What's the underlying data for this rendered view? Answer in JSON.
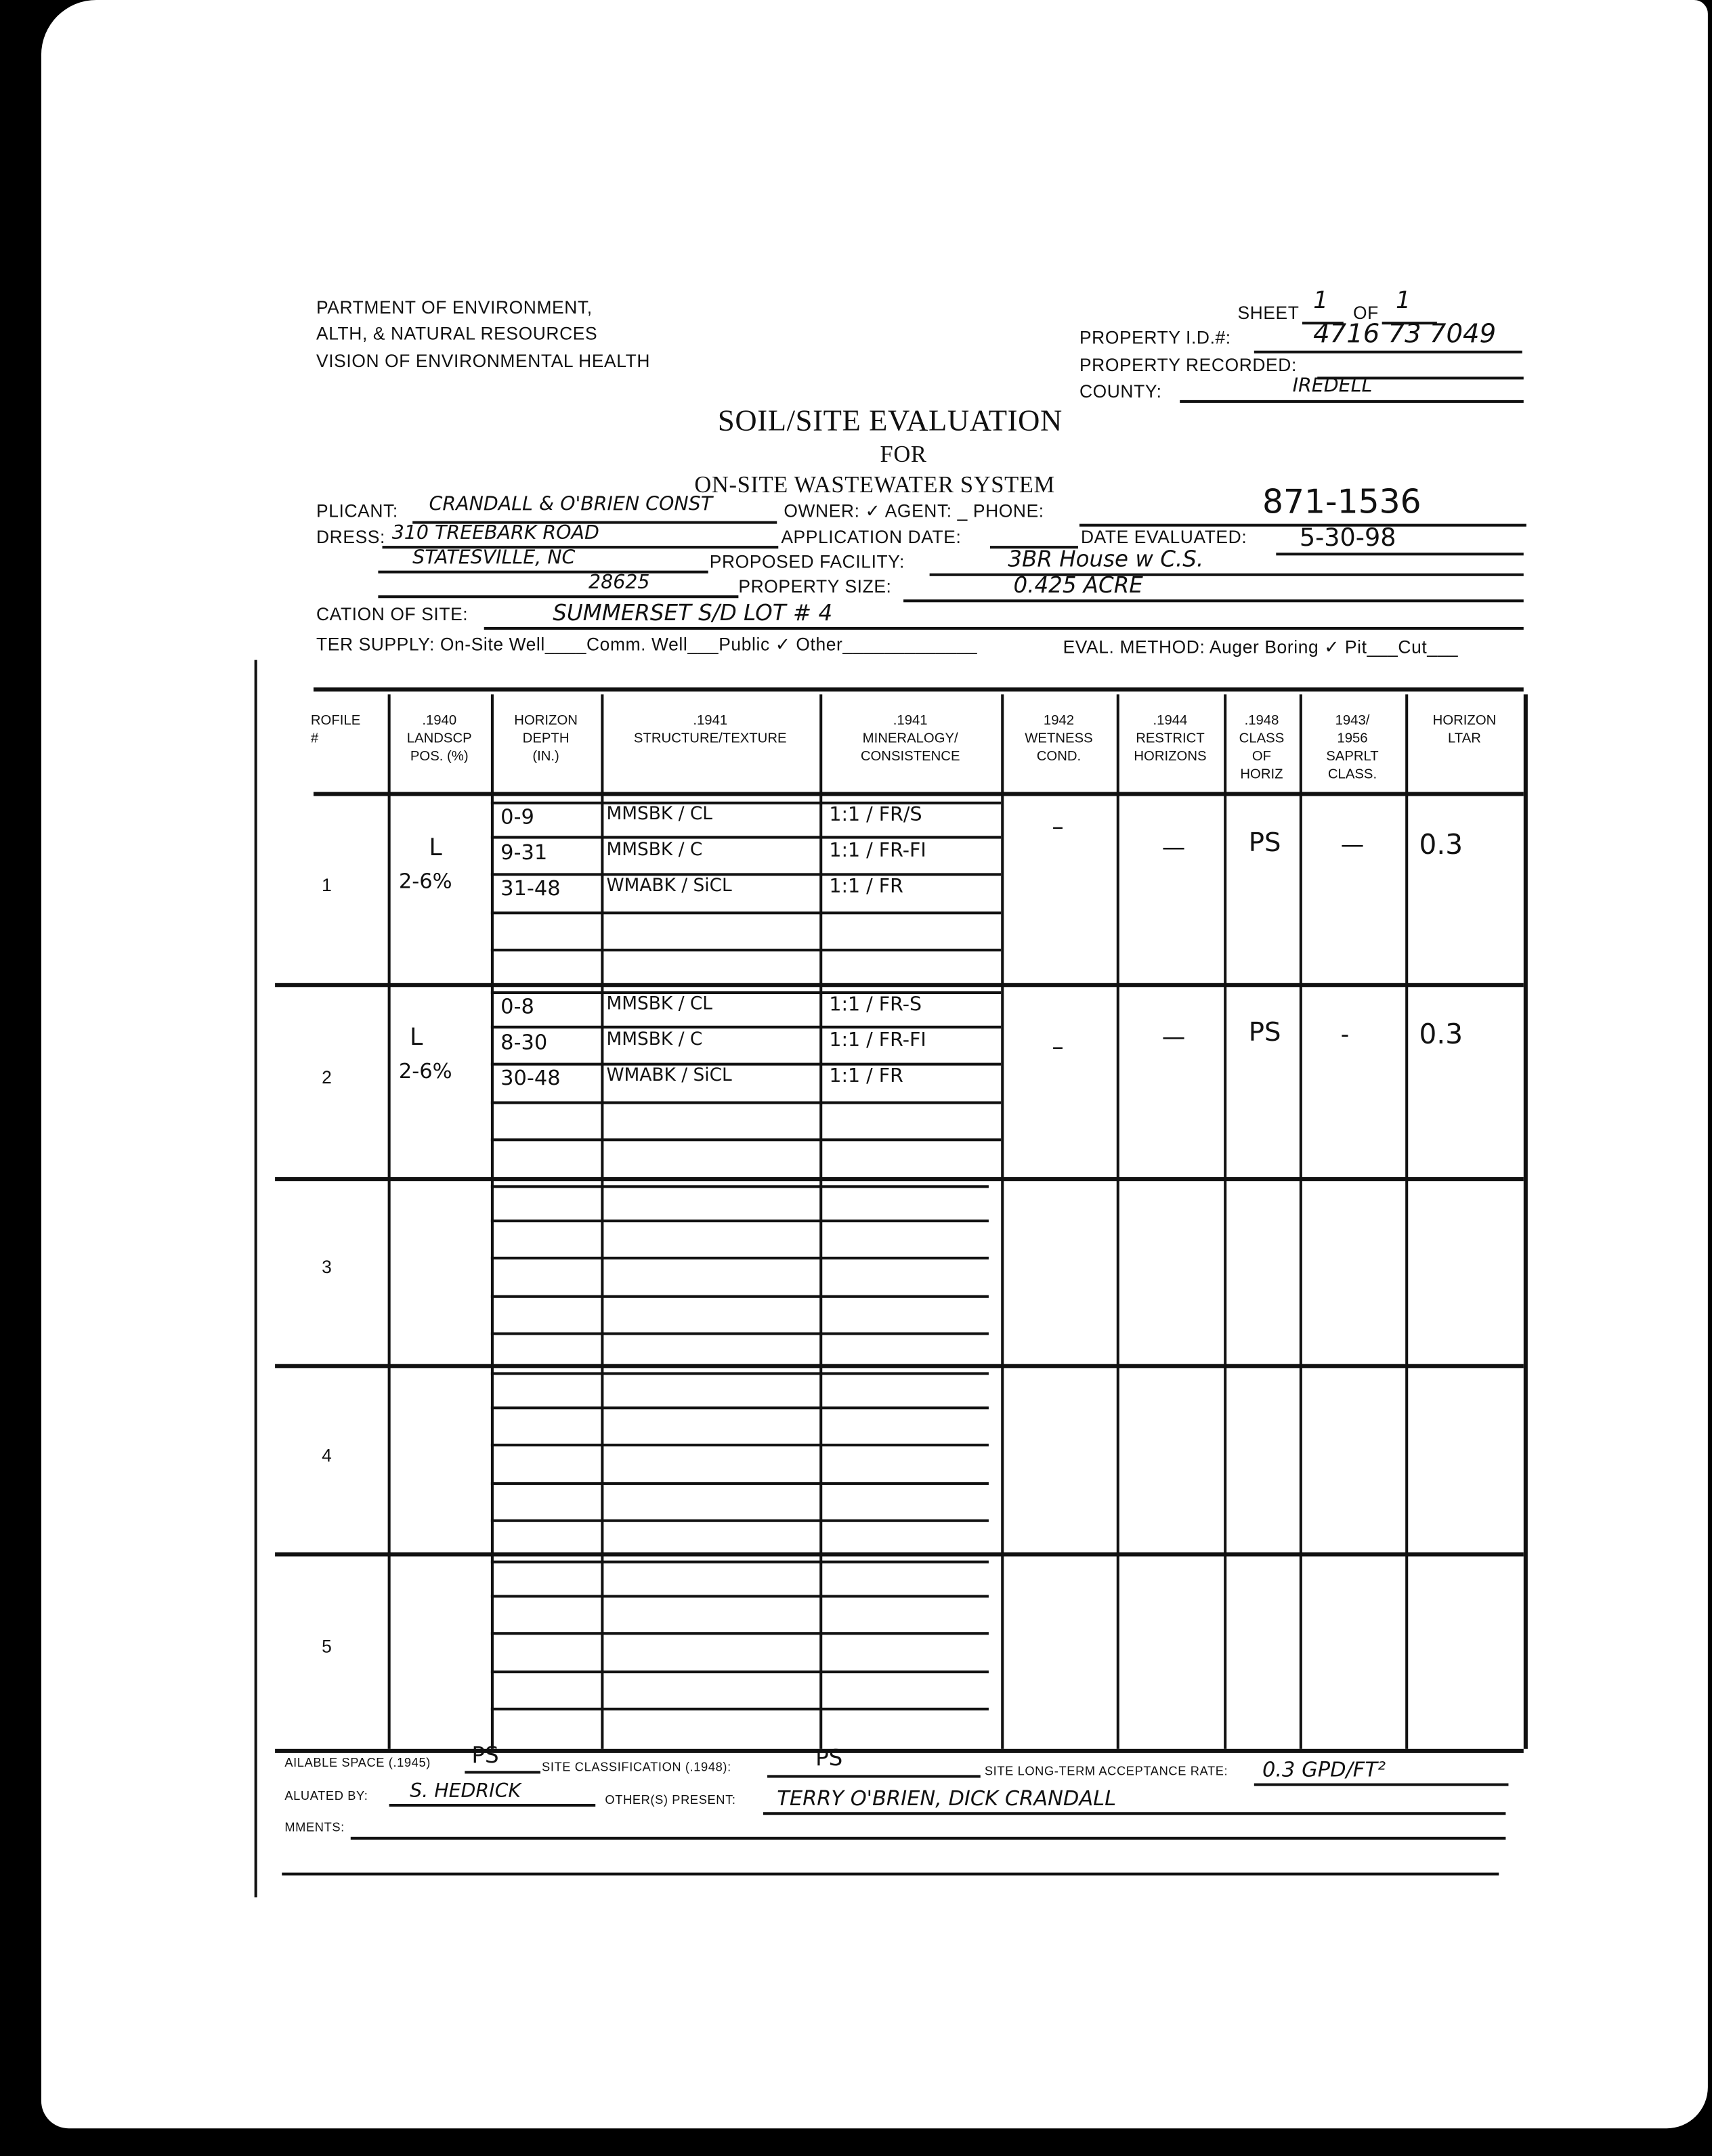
{
  "header": {
    "dept_line1": "PARTMENT OF ENVIRONMENT,",
    "dept_line2": "ALTH, & NATURAL RESOURCES",
    "dept_line3": "VISION OF ENVIRONMENTAL HEALTH",
    "sheet_label": "SHEET",
    "sheet_value": "1",
    "of_label": "OF",
    "of_value": "1",
    "property_id_label": "PROPERTY I.D.#:",
    "property_id_value": "4716 73 7049",
    "property_recorded_label": "PROPERTY RECORDED:",
    "property_recorded_value": "",
    "county_label": "COUNTY:",
    "county_value": "IREDELL",
    "title": "SOIL/SITE EVALUATION",
    "title_for": "FOR",
    "title_system": "ON-SITE WASTEWATER SYSTEM"
  },
  "form": {
    "applicant_label": "PLICANT:",
    "applicant_value": "CRANDALL & O'BRIEN CONST",
    "owner_agent_label": "OWNER: ✓ AGENT: _ PHONE:",
    "phone_value": "871-1536",
    "address_label": "DRESS:",
    "address_line1": "310 TREEBARK ROAD",
    "address_line2": "STATESVILLE, NC",
    "address_line3": "28625",
    "application_date_label": "APPLICATION DATE:",
    "date_evaluated_label": "DATE EVALUATED:",
    "date_evaluated_value": "5-30-98",
    "proposed_facility_label": "PROPOSED FACILITY:",
    "proposed_facility_value": "3BR House w C.S.",
    "property_size_label": "PROPERTY SIZE:",
    "property_size_value": "0.425 ACRE",
    "location_label": "CATION OF SITE:",
    "location_value": "SUMMERSET S/D   LOT # 4",
    "water_supply_label": "TER SUPPLY: On-Site Well____Comm. Well___Public ✓ Other_____________",
    "eval_method_label": "EVAL. METHOD: Auger Boring ✓ Pit___Cut___"
  },
  "table": {
    "columns": [
      "ROFILE\n#",
      ".1940\nLANDSCP\nPOS. (%)",
      "HORIZON\nDEPTH\n(IN.)",
      ".1941\nSTRUCTURE/TEXTURE",
      ".1941\nMINERALOGY/\nCONSISTENCE",
      "1942\nWETNESS\nCOND.",
      ".1944\nRESTRICT\nHORIZONS",
      ".1948\nCLASS\nOF\nHORIZ",
      "1943/\n1956\nSAPRLT\nCLASS.",
      "HORIZON\nLTAR"
    ],
    "profiles": [
      {
        "number": "1",
        "landscape": "L",
        "slope": "2-6%",
        "horizons": [
          {
            "depth": "0-9",
            "structure": "MMSBK / CL",
            "mineralogy": "1:1 / FR/S"
          },
          {
            "depth": "9-31",
            "structure": "MMSBK / C",
            "mineralogy": "1:1 / FR-FI"
          },
          {
            "depth": "31-48",
            "structure": "WMABK / SiCL",
            "mineralogy": "1:1 / FR"
          }
        ],
        "wetness": "–",
        "restrict": "—",
        "class": "PS",
        "saprolite": "—",
        "ltar": "0.3"
      },
      {
        "number": "2",
        "landscape": "L",
        "slope": "2-6%",
        "horizons": [
          {
            "depth": "0-8",
            "structure": "MMSBK / CL",
            "mineralogy": "1:1 / FR-S"
          },
          {
            "depth": "8-30",
            "structure": "MMSBK / C",
            "mineralogy": "1:1 / FR-FI"
          },
          {
            "depth": "30-48",
            "structure": "WMABK / SiCL",
            "mineralogy": "1:1 / FR"
          }
        ],
        "wetness": "–",
        "restrict": "—",
        "class": "PS",
        "saprolite": "-",
        "ltar": "0.3"
      },
      {
        "number": "3",
        "landscape": "",
        "slope": "",
        "horizons": [],
        "wetness": "",
        "restrict": "",
        "class": "",
        "saprolite": "",
        "ltar": ""
      },
      {
        "number": "4",
        "landscape": "",
        "slope": "",
        "horizons": [],
        "wetness": "",
        "restrict": "",
        "class": "",
        "saprolite": "",
        "ltar": ""
      },
      {
        "number": "5",
        "landscape": "",
        "slope": "",
        "horizons": [],
        "wetness": "",
        "restrict": "",
        "class": "",
        "saprolite": "",
        "ltar": ""
      }
    ]
  },
  "footer": {
    "available_space_label": "AILABLE SPACE (.1945)",
    "available_space_value": "PS",
    "site_classification_label": "SITE CLASSIFICATION (.1948):",
    "site_classification_value": "PS",
    "ltar_label": "SITE LONG-TERM ACCEPTANCE RATE:",
    "ltar_value": "0.3 GPD/FT²",
    "evaluated_by_label": "ALUATED BY:",
    "evaluated_by_value": "S. HEDRICK",
    "others_present_label": "OTHER(S) PRESENT:",
    "others_present_value": "TERRY O'BRIEN, DICK CRANDALL",
    "comments_label": "MMENTS:",
    "comments_value": ""
  }
}
